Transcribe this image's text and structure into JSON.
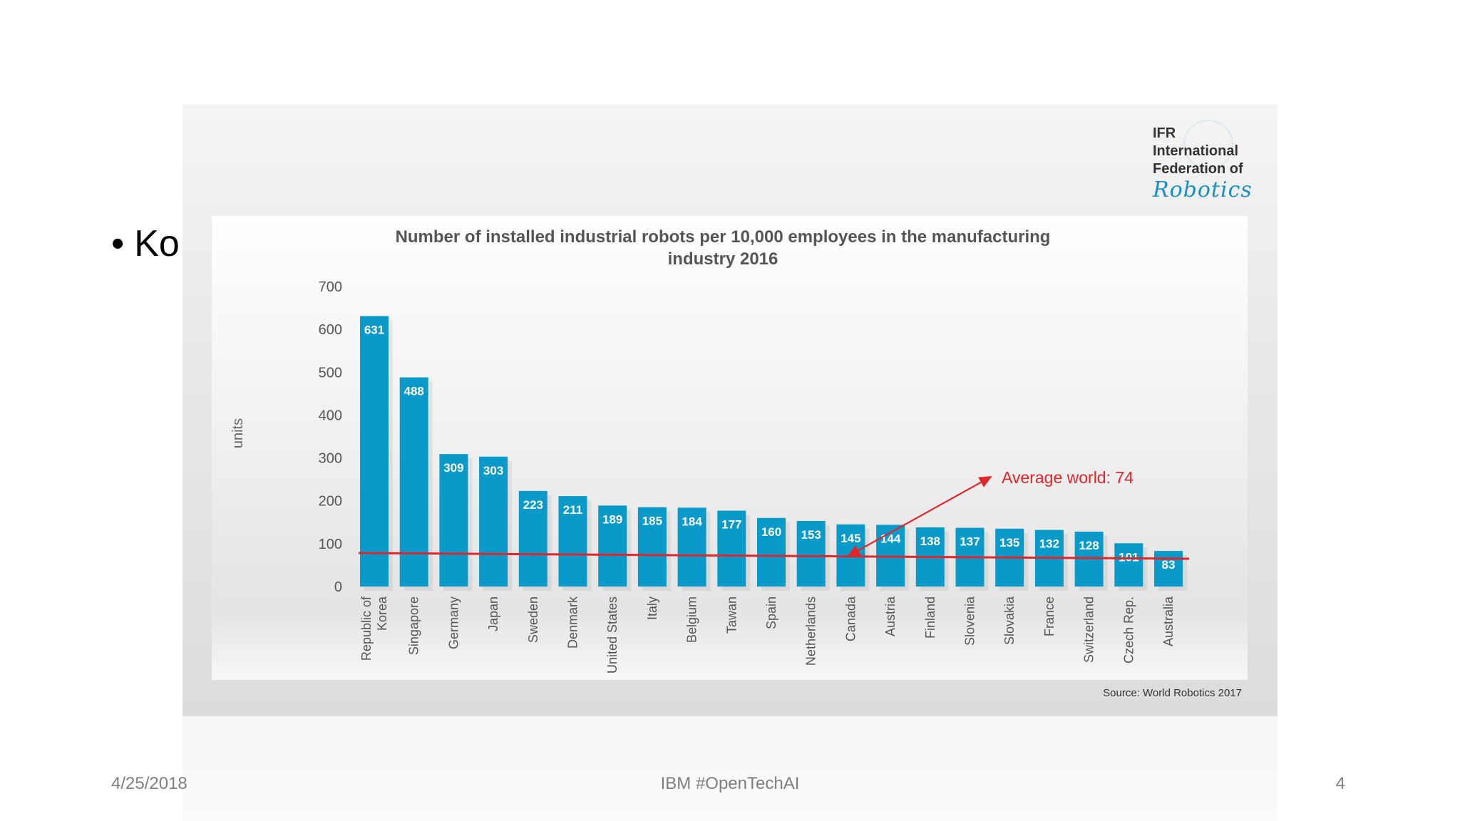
{
  "slide": {
    "bullet_text": "Ko",
    "footer_date": "4/25/2018",
    "footer_center": "IBM #OpenTechAI",
    "page_number": "4"
  },
  "logo": {
    "line1": "IFR",
    "line2": "International",
    "line3": "Federation of",
    "line4": "Robotics"
  },
  "source": "Source: World Robotics 2017",
  "colors": {
    "bar": "#0a9ac9",
    "average": "#e0262b",
    "bar_label": "#ffffff"
  },
  "chart_data": {
    "type": "bar",
    "title": "Number of installed industrial robots per 10,000 employees in the manufacturing industry 2016",
    "title_lines": [
      "Number of installed industrial robots per 10,000 employees in the manufacturing",
      "industry 2016"
    ],
    "ylabel": "units",
    "xlabel": "",
    "ylim": [
      0,
      700
    ],
    "yticks": [
      0,
      100,
      200,
      300,
      400,
      500,
      600,
      700
    ],
    "categories": [
      "Republic of Korea",
      "Singapore",
      "Germany",
      "Japan",
      "Sweden",
      "Denmark",
      "United States",
      "Italy",
      "Belgium",
      "Tawan",
      "Spain",
      "Netherlands",
      "Canada",
      "Austria",
      "Finland",
      "Slovenia",
      "Slovakia",
      "France",
      "Switzerland",
      "Czech Rep.",
      "Australia"
    ],
    "values": [
      631,
      488,
      309,
      303,
      223,
      211,
      189,
      185,
      184,
      177,
      160,
      153,
      145,
      144,
      138,
      137,
      135,
      132,
      128,
      101,
      83
    ],
    "average": {
      "label": "Average world: 74",
      "value": 74
    }
  }
}
